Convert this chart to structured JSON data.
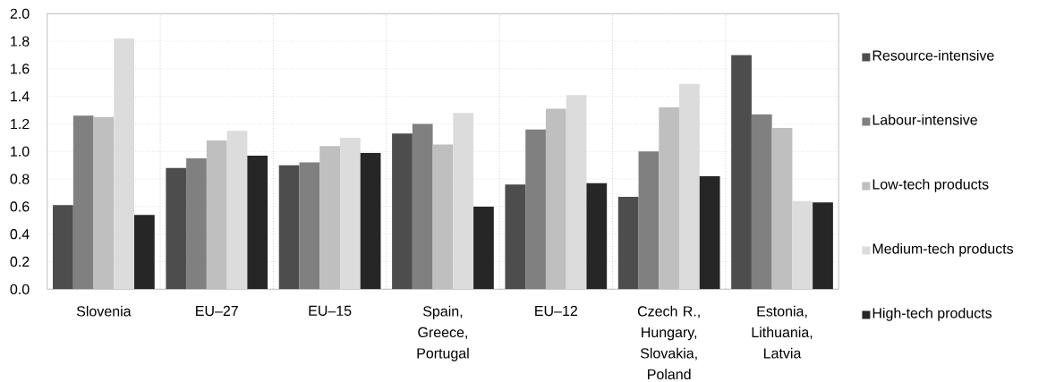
{
  "chart_data": {
    "type": "bar",
    "categories": [
      "Slovenia",
      "EU–27",
      "EU–15",
      "Spain, Greece, Portugal",
      "EU–12",
      "Czech R., Hungary, Slovakia, Poland",
      "Estonia, Lithuania, Latvia"
    ],
    "series": [
      {
        "name": "Resource-intensive",
        "color": "#4d4d4d",
        "values": [
          0.61,
          0.88,
          0.9,
          1.13,
          0.76,
          0.67,
          1.7
        ]
      },
      {
        "name": "Labour-intensive",
        "color": "#808080",
        "values": [
          1.26,
          0.95,
          0.92,
          1.2,
          1.16,
          1.0,
          1.27
        ]
      },
      {
        "name": "Low-tech products",
        "color": "#bfbfbf",
        "values": [
          1.25,
          1.08,
          1.04,
          1.05,
          1.31,
          1.32,
          1.17
        ]
      },
      {
        "name": "Medium-tech products",
        "color": "#dcdcdc",
        "values": [
          1.82,
          1.15,
          1.1,
          1.28,
          1.41,
          1.49,
          0.64
        ]
      },
      {
        "name": "High-tech products",
        "color": "#262626",
        "values": [
          0.54,
          0.97,
          0.99,
          0.6,
          0.77,
          0.82,
          0.63
        ]
      }
    ],
    "ylim": [
      0,
      2
    ],
    "yticks": [
      {
        "value": 0,
        "label": "0.0"
      },
      0.2,
      0.4,
      0.6,
      0.8,
      {
        "value": 1,
        "label": "1.0"
      },
      1.2,
      1.4,
      1.6,
      1.8,
      {
        "value": 2,
        "label": "2.0"
      }
    ],
    "grid": true,
    "legend": "right"
  }
}
